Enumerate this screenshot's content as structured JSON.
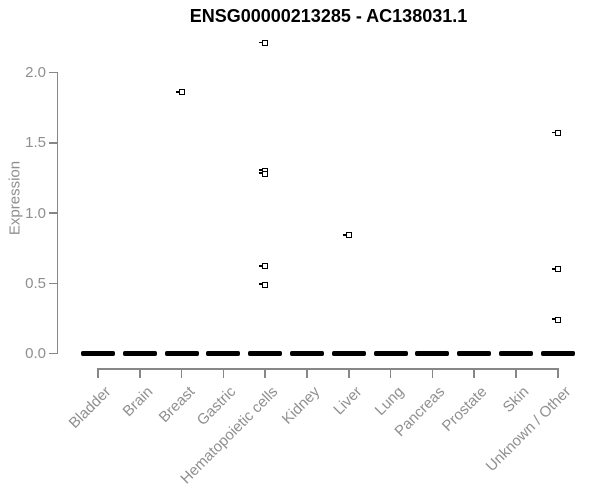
{
  "title": "ENSG00000213285 - AC138031.1",
  "colors": {
    "background": "#ffffff",
    "title_text": "#000000",
    "axis_text": "#8f8f8f",
    "axis_line": "#878787",
    "marker": "#000000"
  },
  "chart_data": {
    "type": "boxplot",
    "title": "ENSG00000213285 - AC138031.1",
    "xlabel": "",
    "ylabel": "Expression",
    "ylim": [
      0,
      2.25
    ],
    "yticks": [
      0.0,
      0.5,
      1.0,
      1.5,
      2.0
    ],
    "ytick_labels": [
      "0.0",
      "0.5",
      "1.0",
      "1.5",
      "2.0"
    ],
    "grid": false,
    "legend": "none",
    "categories": [
      "Bladder",
      "Brain",
      "Breast",
      "Gastric",
      "Hematopoietic cells",
      "Kidney",
      "Liver",
      "Lung",
      "Pancreas",
      "Prostate",
      "Skin",
      "Unknown / Other"
    ],
    "groups": [
      {
        "category": "Bladder",
        "median": 0,
        "outliers": []
      },
      {
        "category": "Brain",
        "median": 0,
        "outliers": []
      },
      {
        "category": "Breast",
        "median": 0,
        "outliers": [
          1.86
        ]
      },
      {
        "category": "Gastric",
        "median": 0,
        "outliers": []
      },
      {
        "category": "Hematopoietic cells",
        "median": 0,
        "outliers": [
          2.21,
          1.3,
          1.28,
          0.62,
          0.49
        ]
      },
      {
        "category": "Kidney",
        "median": 0,
        "outliers": []
      },
      {
        "category": "Liver",
        "median": 0,
        "outliers": [
          0.84
        ]
      },
      {
        "category": "Lung",
        "median": 0,
        "outliers": []
      },
      {
        "category": "Pancreas",
        "median": 0,
        "outliers": []
      },
      {
        "category": "Prostate",
        "median": 0,
        "outliers": []
      },
      {
        "category": "Skin",
        "median": 0,
        "outliers": []
      },
      {
        "category": "Unknown / Other",
        "median": 0,
        "outliers": [
          1.57,
          0.6,
          0.24
        ]
      }
    ]
  }
}
